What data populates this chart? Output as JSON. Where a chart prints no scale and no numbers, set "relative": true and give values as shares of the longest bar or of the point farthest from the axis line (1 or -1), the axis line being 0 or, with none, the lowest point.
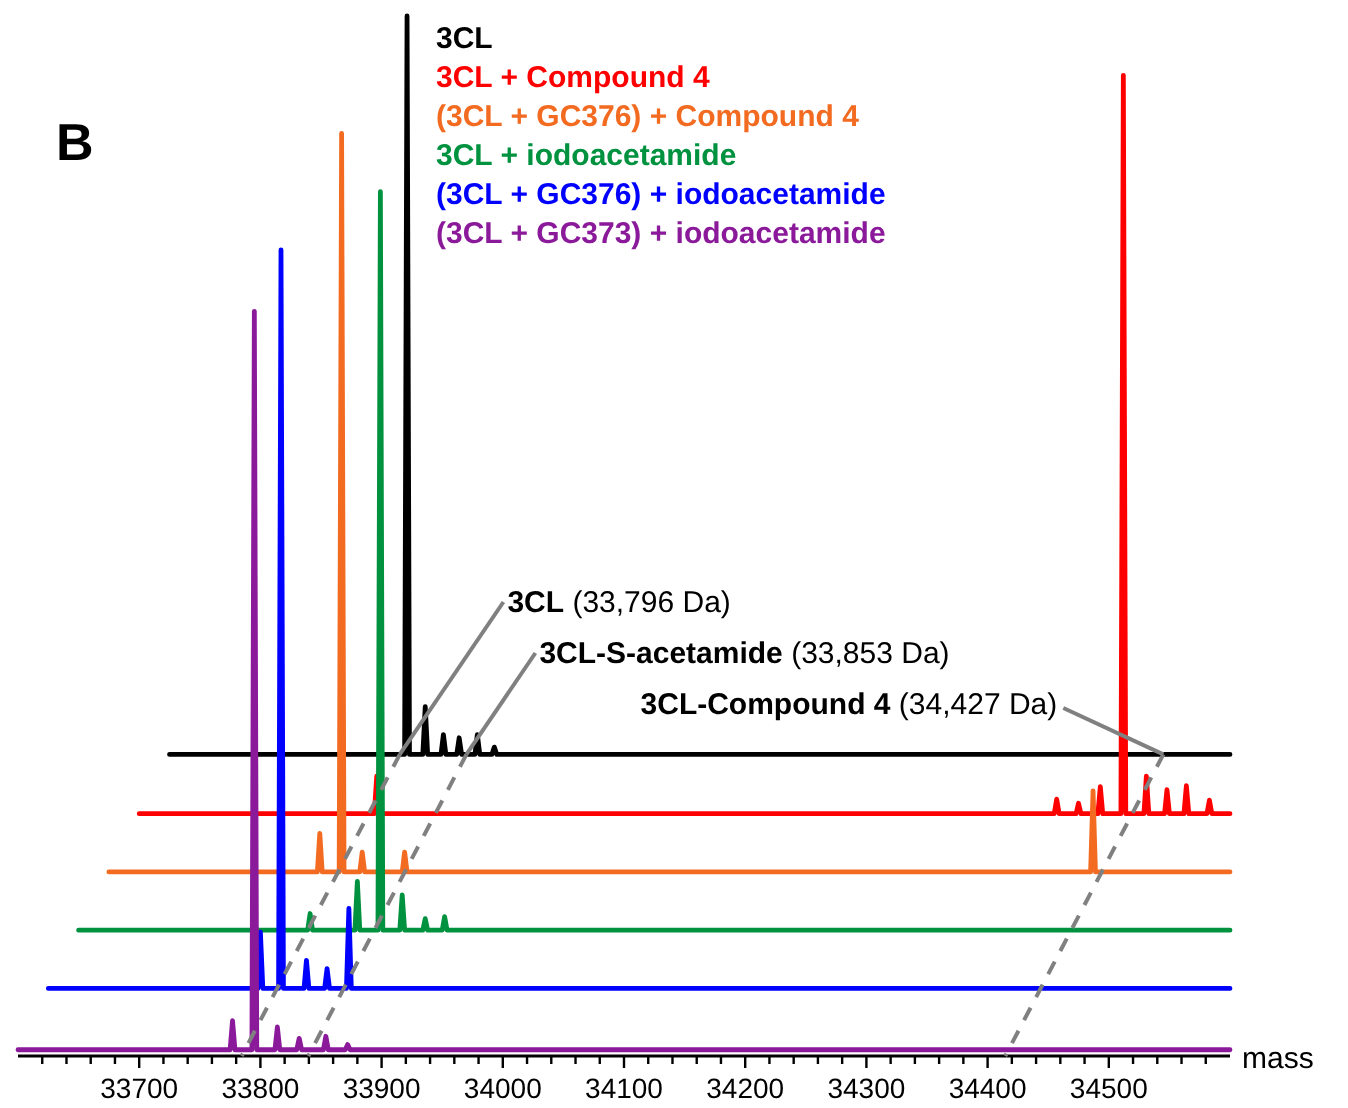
{
  "chart_data": {
    "type": "line",
    "relative": true,
    "xlim": [
      33600,
      34600
    ],
    "xlabel": "mass",
    "xticks": [
      {
        "value": 33620,
        "label": null
      },
      {
        "value": 33640,
        "label": null
      },
      {
        "value": 33660,
        "label": null
      },
      {
        "value": 33680,
        "label": null
      },
      33700,
      {
        "value": 33720,
        "label": null
      },
      {
        "value": 33740,
        "label": null
      },
      {
        "value": 33760,
        "label": null
      },
      {
        "value": 33780,
        "label": null
      },
      33800,
      {
        "value": 33820,
        "label": null
      },
      {
        "value": 33840,
        "label": null
      },
      {
        "value": 33860,
        "label": null
      },
      {
        "value": 33880,
        "label": null
      },
      33900,
      {
        "value": 33920,
        "label": null
      },
      {
        "value": 33940,
        "label": null
      },
      {
        "value": 33960,
        "label": null
      },
      {
        "value": 33980,
        "label": null
      },
      34000,
      {
        "value": 34020,
        "label": null
      },
      {
        "value": 34040,
        "label": null
      },
      {
        "value": 34060,
        "label": null
      },
      {
        "value": 34080,
        "label": null
      },
      34100,
      {
        "value": 34120,
        "label": null
      },
      {
        "value": 34140,
        "label": null
      },
      {
        "value": 34160,
        "label": null
      },
      {
        "value": 34180,
        "label": null
      },
      34200,
      {
        "value": 34220,
        "label": null
      },
      {
        "value": 34240,
        "label": null
      },
      {
        "value": 34260,
        "label": null
      },
      {
        "value": 34280,
        "label": null
      },
      34300,
      {
        "value": 34320,
        "label": null
      },
      {
        "value": 34340,
        "label": null
      },
      {
        "value": 34360,
        "label": null
      },
      {
        "value": 34380,
        "label": null
      },
      34400,
      {
        "value": 34420,
        "label": null
      },
      {
        "value": 34440,
        "label": null
      },
      {
        "value": 34460,
        "label": null
      },
      {
        "value": 34480,
        "label": null
      },
      34500,
      {
        "value": 34520,
        "label": null
      },
      {
        "value": 34540,
        "label": null
      },
      {
        "value": 34560,
        "label": null
      },
      {
        "value": 34580,
        "label": null
      }
    ],
    "annotations": [
      "B",
      {
        "text": "3CL (33,796 Da)",
        "x": 33915,
        "y": 0.29
      },
      {
        "text": "3CL-S-acetamide (33,853 Da)",
        "x": 33970,
        "y": 0.29
      },
      {
        "text": "3CL-Compound 4 (34,427 Da)",
        "x": 34545,
        "y": 0.29
      }
    ],
    "series": [
      {
        "name": "3CL",
        "color": "#000000",
        "x": [
          33725,
          33919,
          33921,
          33923,
          33934,
          33936,
          33938,
          33949,
          33951,
          33953,
          33962,
          33964,
          33966,
          33977,
          33979,
          33981,
          33991,
          33993,
          33995,
          34600
        ],
        "values": [
          0.29,
          0.29,
          1,
          0.29,
          0.29,
          0.336,
          0.29,
          0.29,
          0.309,
          0.29,
          0.29,
          0.306,
          0.29,
          0.29,
          0.309,
          0.29,
          0.29,
          0.297,
          0.29,
          0.29
        ]
      },
      {
        "name": "3CL + Compound 4",
        "color": "#ff0000",
        "x": [
          33700,
          33894,
          33896,
          33898,
          34455,
          34457,
          34459,
          34473,
          34475,
          34477,
          34491,
          34493,
          34495,
          34510,
          34512,
          34514,
          34529,
          34531,
          34533,
          34546,
          34548,
          34550,
          34562,
          34564,
          34566,
          34581,
          34583,
          34585,
          34600
        ],
        "values": [
          0.233,
          0.233,
          0.269,
          0.233,
          0.233,
          0.247,
          0.233,
          0.233,
          0.243,
          0.233,
          0.233,
          0.259,
          0.233,
          0.233,
          0.943,
          0.233,
          0.233,
          0.269,
          0.233,
          0.233,
          0.256,
          0.233,
          0.233,
          0.26,
          0.233,
          0.233,
          0.246,
          0.233,
          0.233
        ]
      },
      {
        "name": "(3CL + GC376) + Compound 4",
        "color": "#f26b21",
        "x": [
          33675,
          33847,
          33849,
          33851,
          33865,
          33867,
          33869,
          33882,
          33884,
          33886,
          33917,
          33919,
          33921,
          34485,
          34487,
          34489,
          34600
        ],
        "values": [
          0.177,
          0.177,
          0.214,
          0.177,
          0.177,
          0.887,
          0.177,
          0.177,
          0.196,
          0.177,
          0.177,
          0.196,
          0.177,
          0.177,
          0.255,
          0.177,
          0.177
        ]
      },
      {
        "name": "3CL + iodoacetamide",
        "color": "#00923f",
        "x": [
          33650,
          33839,
          33841,
          33843,
          33878,
          33880,
          33882,
          33897,
          33899,
          33901,
          33915,
          33917,
          33919,
          33934,
          33936,
          33938,
          33950,
          33952,
          33954,
          34600
        ],
        "values": [
          0.121,
          0.121,
          0.137,
          0.121,
          0.121,
          0.168,
          0.121,
          0.121,
          0.831,
          0.121,
          0.121,
          0.155,
          0.121,
          0.121,
          0.132,
          0.121,
          0.121,
          0.134,
          0.121,
          0.121
        ]
      },
      {
        "name": "(3CL + GC376) + iodoacetamide",
        "color": "#0000ff",
        "x": [
          33625,
          33798,
          33800,
          33802,
          33815,
          33817,
          33819,
          33836,
          33838,
          33840,
          33853,
          33855,
          33857,
          33871,
          33873,
          33875,
          34600
        ],
        "values": [
          0.065,
          0.065,
          0.119,
          0.065,
          0.065,
          0.775,
          0.065,
          0.065,
          0.092,
          0.065,
          0.065,
          0.084,
          0.065,
          0.065,
          0.142,
          0.065,
          0.065
        ]
      },
      {
        "name": "(3CL + GC373) + iodoacetamide",
        "color": "#8b1a9b",
        "x": [
          33600,
          33775,
          33777,
          33779,
          33793,
          33795,
          33797,
          33812,
          33814,
          33816,
          33830,
          33832,
          33834,
          33852,
          33854,
          33856,
          33870,
          33872,
          33874,
          34600
        ],
        "values": [
          0.006,
          0.006,
          0.034,
          0.006,
          0.006,
          0.716,
          0.006,
          0.006,
          0.028,
          0.006,
          0.006,
          0.017,
          0.006,
          0.006,
          0.019,
          0.006,
          0.006,
          0.011,
          0.006,
          0.006
        ]
      }
    ]
  }
}
